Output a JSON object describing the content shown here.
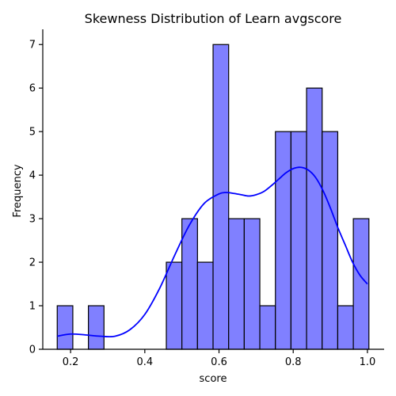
{
  "chart_data": {
    "type": "bar",
    "title": "Skewness Distribution of Learn avgscore",
    "xlabel": "score",
    "ylabel": "Frequency",
    "xlim": [
      0.125,
      1.045
    ],
    "ylim": [
      0,
      7.35
    ],
    "x_ticks": [
      0.2,
      0.4,
      0.6,
      0.8,
      1.0
    ],
    "x_tick_labels": [
      "0.2",
      "0.4",
      "0.6",
      "0.8",
      "1.0"
    ],
    "y_ticks": [
      0,
      1,
      2,
      3,
      4,
      5,
      6,
      7
    ],
    "y_tick_labels": [
      "0",
      "1",
      "2",
      "3",
      "4",
      "5",
      "6",
      "7"
    ],
    "bins": [
      {
        "x0": 0.164,
        "x1": 0.206,
        "count": 1
      },
      {
        "x0": 0.206,
        "x1": 0.248,
        "count": 0
      },
      {
        "x0": 0.248,
        "x1": 0.29,
        "count": 1
      },
      {
        "x0": 0.29,
        "x1": 0.332,
        "count": 0
      },
      {
        "x0": 0.332,
        "x1": 0.374,
        "count": 0
      },
      {
        "x0": 0.374,
        "x1": 0.416,
        "count": 0
      },
      {
        "x0": 0.416,
        "x1": 0.458,
        "count": 0
      },
      {
        "x0": 0.458,
        "x1": 0.5,
        "count": 2
      },
      {
        "x0": 0.5,
        "x1": 0.542,
        "count": 3
      },
      {
        "x0": 0.542,
        "x1": 0.584,
        "count": 2
      },
      {
        "x0": 0.584,
        "x1": 0.626,
        "count": 7
      },
      {
        "x0": 0.626,
        "x1": 0.668,
        "count": 3
      },
      {
        "x0": 0.668,
        "x1": 0.71,
        "count": 3
      },
      {
        "x0": 0.71,
        "x1": 0.752,
        "count": 1
      },
      {
        "x0": 0.752,
        "x1": 0.794,
        "count": 5
      },
      {
        "x0": 0.794,
        "x1": 0.836,
        "count": 5
      },
      {
        "x0": 0.836,
        "x1": 0.878,
        "count": 6
      },
      {
        "x0": 0.878,
        "x1": 0.92,
        "count": 5
      },
      {
        "x0": 0.92,
        "x1": 0.962,
        "count": 1
      },
      {
        "x0": 0.962,
        "x1": 1.004,
        "count": 3
      }
    ],
    "kde_curve": {
      "x": [
        0.164,
        0.2,
        0.24,
        0.28,
        0.32,
        0.36,
        0.4,
        0.44,
        0.48,
        0.52,
        0.56,
        0.6,
        0.62,
        0.64,
        0.66,
        0.68,
        0.7,
        0.72,
        0.74,
        0.76,
        0.78,
        0.8,
        0.82,
        0.84,
        0.86,
        0.88,
        0.9,
        0.92,
        0.94,
        0.96,
        0.98,
        1.0
      ],
      "y": [
        0.3,
        0.35,
        0.33,
        0.3,
        0.3,
        0.45,
        0.8,
        1.4,
        2.15,
        2.85,
        3.35,
        3.57,
        3.6,
        3.58,
        3.55,
        3.52,
        3.55,
        3.62,
        3.75,
        3.9,
        4.05,
        4.15,
        4.18,
        4.12,
        3.95,
        3.65,
        3.25,
        2.8,
        2.4,
        2.0,
        1.7,
        1.5
      ]
    },
    "grid": false,
    "legend": "none",
    "colors": {
      "bar_fill": "#8080ff",
      "bar_edge": "#000000",
      "kde_line": "#0000ff"
    }
  }
}
